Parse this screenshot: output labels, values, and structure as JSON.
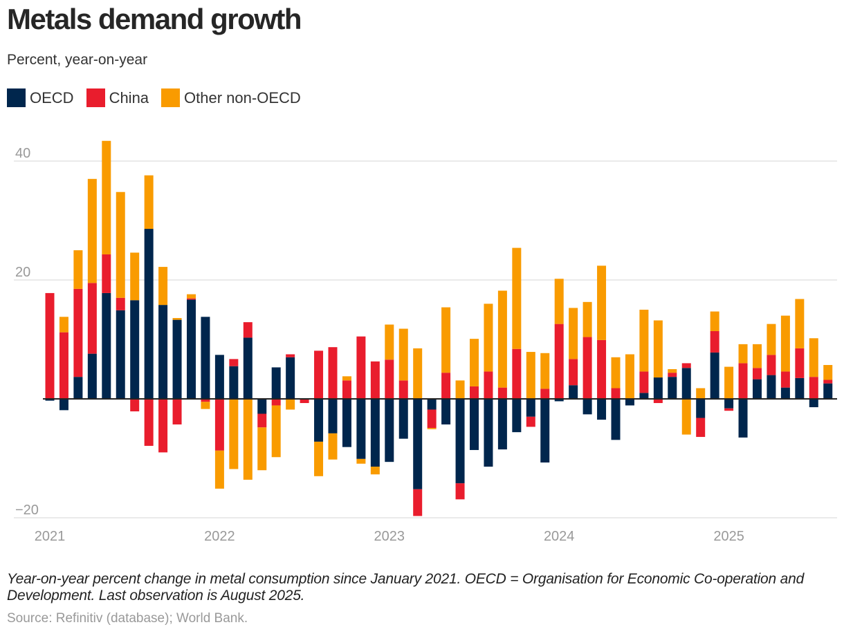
{
  "title": "Metals demand growth",
  "subtitle": "Percent, year-on-year",
  "note": "Year-on-year percent change in metal consumption since January 2021. OECD = Organisation for Economic Co-operation and Development. Last observation is August 2025.",
  "source": "Source: Refinitiv (database); World Bank.",
  "chart_data": {
    "type": "bar",
    "stacked": true,
    "title": "Metals demand growth",
    "ylabel": "Percent, year-on-year",
    "ylim": [
      -20,
      45
    ],
    "yticks": [
      40,
      20,
      -20
    ],
    "ytick_labels": [
      "40",
      "20",
      "−20"
    ],
    "xtick_labels": [
      "2021",
      "2022",
      "2023",
      "2024",
      "2025"
    ],
    "grid": true,
    "legend_position": "top-left",
    "categories": [
      "2021-01",
      "2021-02",
      "2021-03",
      "2021-04",
      "2021-05",
      "2021-06",
      "2021-07",
      "2021-08",
      "2021-09",
      "2021-10",
      "2021-11",
      "2021-12",
      "2022-01",
      "2022-02",
      "2022-03",
      "2022-04",
      "2022-05",
      "2022-06",
      "2022-07",
      "2022-08",
      "2022-09",
      "2022-10",
      "2022-11",
      "2022-12",
      "2023-01",
      "2023-02",
      "2023-03",
      "2023-04",
      "2023-05",
      "2023-06",
      "2023-07",
      "2023-08",
      "2023-09",
      "2023-10",
      "2023-11",
      "2023-12",
      "2024-01",
      "2024-02",
      "2024-03",
      "2024-04",
      "2024-05",
      "2024-06",
      "2024-07",
      "2024-08",
      "2024-09",
      "2024-10",
      "2024-11",
      "2024-12",
      "2025-01",
      "2025-02",
      "2025-03",
      "2025-04",
      "2025-05",
      "2025-06",
      "2025-07",
      "2025-08"
    ],
    "series": [
      {
        "name": "OECD",
        "color": "#00264d",
        "values": [
          -0.3,
          -1.9,
          3.7,
          7.6,
          17.8,
          14.9,
          16.6,
          28.6,
          15.8,
          13.3,
          16.7,
          13.8,
          7.4,
          5.5,
          10.3,
          -2.5,
          5.3,
          7.0,
          0,
          -7.2,
          -5.8,
          -8.1,
          -10.1,
          -11.4,
          -10.6,
          -6.7,
          -15.2,
          -1.8,
          -4.3,
          -14.2,
          -8.6,
          -11.4,
          -8.5,
          -5.6,
          -3.0,
          -10.7,
          -0.4,
          2.3,
          -2.6,
          -3.5,
          -6.9,
          -1.1,
          1.0,
          3.6,
          3.7,
          5.2,
          -3.2,
          7.8,
          -1.6,
          -6.5,
          3.3,
          4.0,
          1.9,
          3.5,
          -1.4,
          2.6
        ]
      },
      {
        "name": "China",
        "color": "#e91d2d",
        "values": [
          17.8,
          11.2,
          14.8,
          11.9,
          6.5,
          2.1,
          -2.1,
          -7.9,
          -9.0,
          -4.3,
          0.2,
          -0.5,
          -8.7,
          1.2,
          2.6,
          -2.3,
          -1.1,
          0.5,
          -0.7,
          8.1,
          8.7,
          3.1,
          10.5,
          6.3,
          6.6,
          3.1,
          -4.5,
          -3.1,
          4.4,
          -2.7,
          2.1,
          4.6,
          1.9,
          8.4,
          -1.7,
          1.7,
          12.6,
          4.4,
          10.4,
          9.9,
          1.8,
          0,
          3.6,
          -0.7,
          0.7,
          0.8,
          -3.2,
          3.6,
          -0.4,
          6.0,
          1.9,
          3.4,
          2.7,
          5.0,
          3.7,
          0.6
        ]
      },
      {
        "name": "Other non-OECD",
        "color": "#f99b00",
        "values": [
          0,
          2.6,
          6.5,
          17.5,
          19.1,
          17.8,
          8.0,
          9.0,
          6.4,
          0.3,
          0.7,
          -1.2,
          -6.4,
          -11.8,
          -13.6,
          -7.2,
          -8.7,
          -1.8,
          0,
          -5.8,
          -4.4,
          0.7,
          -0.8,
          -1.3,
          5.9,
          8.7,
          8.5,
          -0.2,
          11.0,
          3.1,
          8.0,
          11.4,
          16.3,
          17.0,
          7.9,
          6.0,
          7.6,
          8.6,
          5.9,
          12.5,
          5.2,
          7.5,
          10.4,
          9.6,
          0.6,
          -6.0,
          1.8,
          3.3,
          5.4,
          3.2,
          4.0,
          5.2,
          9.4,
          8.3,
          6.5,
          2.5
        ]
      }
    ]
  }
}
